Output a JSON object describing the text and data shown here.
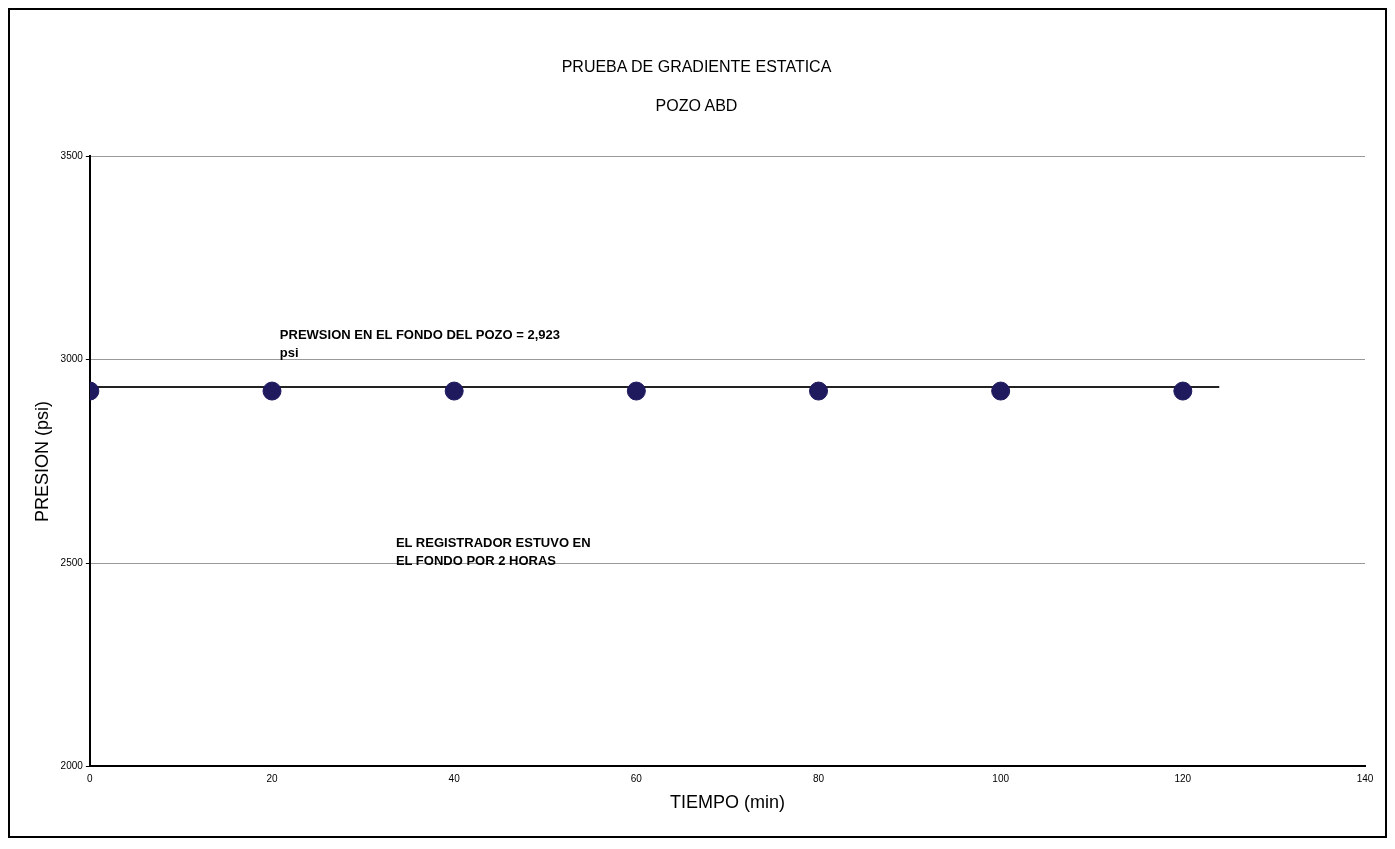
{
  "chart_data": {
    "type": "scatter",
    "title": "PRUEBA DE GRADIENTE ESTATICA",
    "subtitle": "POZO ABD",
    "xlabel": "TIEMPO (min)",
    "ylabel": "PRESION (psi)",
    "x": [
      0,
      20,
      40,
      60,
      80,
      100,
      120
    ],
    "series": [
      {
        "color": "#1f1a5e",
        "values": [
          2923,
          2923,
          2923,
          2923,
          2923,
          2923,
          2923
        ]
      },
      {
        "type": "line",
        "color": "#222222",
        "x": [
          0,
          124
        ],
        "values": [
          2933,
          2933
        ],
        "marker": "none"
      }
    ],
    "xlim": [
      0,
      140
    ],
    "xticks": [
      0,
      20,
      40,
      60,
      80,
      100,
      120,
      140
    ],
    "ylim": [
      2000,
      3500
    ],
    "yticks": [
      2000,
      2500,
      3000,
      3500
    ],
    "grid": "y",
    "marker": "circle",
    "annotations": [
      "PREWSION EN EL FONDO DEL POZO = 2,923\npsi",
      "EL REGISTRADOR ESTUVO EN\nEL FONDO POR 2 HORAS"
    ]
  }
}
